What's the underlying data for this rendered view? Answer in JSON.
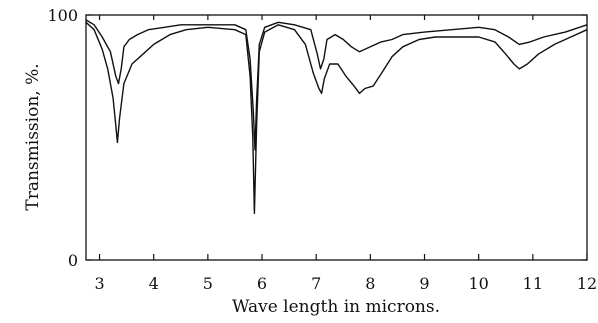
{
  "chart_data": {
    "type": "line",
    "xlabel": "Wave length in microns.",
    "ylabel": "Transmission, %.",
    "xlim": [
      2.75,
      12
    ],
    "ylim": [
      0,
      100
    ],
    "x_ticks": [
      "3",
      "4",
      "5",
      "6",
      "7",
      "8",
      "9",
      "10",
      "11",
      "12"
    ],
    "x_tick_values": [
      3,
      4,
      5,
      6,
      7,
      8,
      9,
      10,
      11,
      12
    ],
    "y_ticks": [
      "0",
      "100"
    ],
    "y_tick_values": [
      0,
      100
    ],
    "grid": false,
    "series": [
      {
        "points": [
          [
            2.75,
            98
          ],
          [
            2.9,
            96
          ],
          [
            3.05,
            91
          ],
          [
            3.2,
            85
          ],
          [
            3.3,
            75
          ],
          [
            3.35,
            72
          ],
          [
            3.4,
            78
          ],
          [
            3.45,
            87
          ],
          [
            3.55,
            90
          ],
          [
            3.7,
            92
          ],
          [
            3.9,
            94
          ],
          [
            4.2,
            95
          ],
          [
            4.5,
            96
          ],
          [
            5.0,
            96
          ],
          [
            5.5,
            96
          ],
          [
            5.7,
            94
          ],
          [
            5.78,
            82
          ],
          [
            5.84,
            60
          ],
          [
            5.87,
            45
          ],
          [
            5.9,
            65
          ],
          [
            5.95,
            88
          ],
          [
            6.05,
            95
          ],
          [
            6.3,
            97
          ],
          [
            6.6,
            96
          ],
          [
            6.9,
            94
          ],
          [
            7.02,
            84
          ],
          [
            7.08,
            78
          ],
          [
            7.14,
            82
          ],
          [
            7.2,
            90
          ],
          [
            7.35,
            92
          ],
          [
            7.5,
            90
          ],
          [
            7.65,
            87
          ],
          [
            7.8,
            85
          ],
          [
            8.0,
            87
          ],
          [
            8.2,
            89
          ],
          [
            8.4,
            90
          ],
          [
            8.6,
            92
          ],
          [
            9.0,
            93
          ],
          [
            9.5,
            94
          ],
          [
            10.0,
            95
          ],
          [
            10.3,
            94
          ],
          [
            10.55,
            91
          ],
          [
            10.75,
            88
          ],
          [
            10.95,
            89
          ],
          [
            11.2,
            91
          ],
          [
            11.6,
            93
          ],
          [
            12.0,
            96
          ]
        ]
      },
      {
        "points": [
          [
            2.75,
            97
          ],
          [
            2.9,
            94
          ],
          [
            3.05,
            86
          ],
          [
            3.15,
            78
          ],
          [
            3.25,
            66
          ],
          [
            3.3,
            55
          ],
          [
            3.33,
            48
          ],
          [
            3.37,
            58
          ],
          [
            3.45,
            72
          ],
          [
            3.6,
            80
          ],
          [
            3.8,
            84
          ],
          [
            4.0,
            88
          ],
          [
            4.3,
            92
          ],
          [
            4.6,
            94
          ],
          [
            5.0,
            95
          ],
          [
            5.5,
            94
          ],
          [
            5.7,
            92
          ],
          [
            5.78,
            75
          ],
          [
            5.83,
            50
          ],
          [
            5.86,
            19
          ],
          [
            5.9,
            55
          ],
          [
            5.95,
            85
          ],
          [
            6.05,
            93
          ],
          [
            6.3,
            96
          ],
          [
            6.6,
            94
          ],
          [
            6.8,
            88
          ],
          [
            6.95,
            76
          ],
          [
            7.05,
            70
          ],
          [
            7.1,
            68
          ],
          [
            7.15,
            74
          ],
          [
            7.25,
            80
          ],
          [
            7.4,
            80
          ],
          [
            7.55,
            75
          ],
          [
            7.7,
            71
          ],
          [
            7.8,
            68
          ],
          [
            7.9,
            70
          ],
          [
            8.05,
            71
          ],
          [
            8.2,
            76
          ],
          [
            8.4,
            83
          ],
          [
            8.6,
            87
          ],
          [
            8.9,
            90
          ],
          [
            9.2,
            91
          ],
          [
            9.6,
            91
          ],
          [
            10.0,
            91
          ],
          [
            10.3,
            89
          ],
          [
            10.5,
            84
          ],
          [
            10.65,
            80
          ],
          [
            10.75,
            78
          ],
          [
            10.9,
            80
          ],
          [
            11.1,
            84
          ],
          [
            11.4,
            88
          ],
          [
            11.7,
            91
          ],
          [
            12.0,
            94
          ]
        ]
      }
    ]
  }
}
